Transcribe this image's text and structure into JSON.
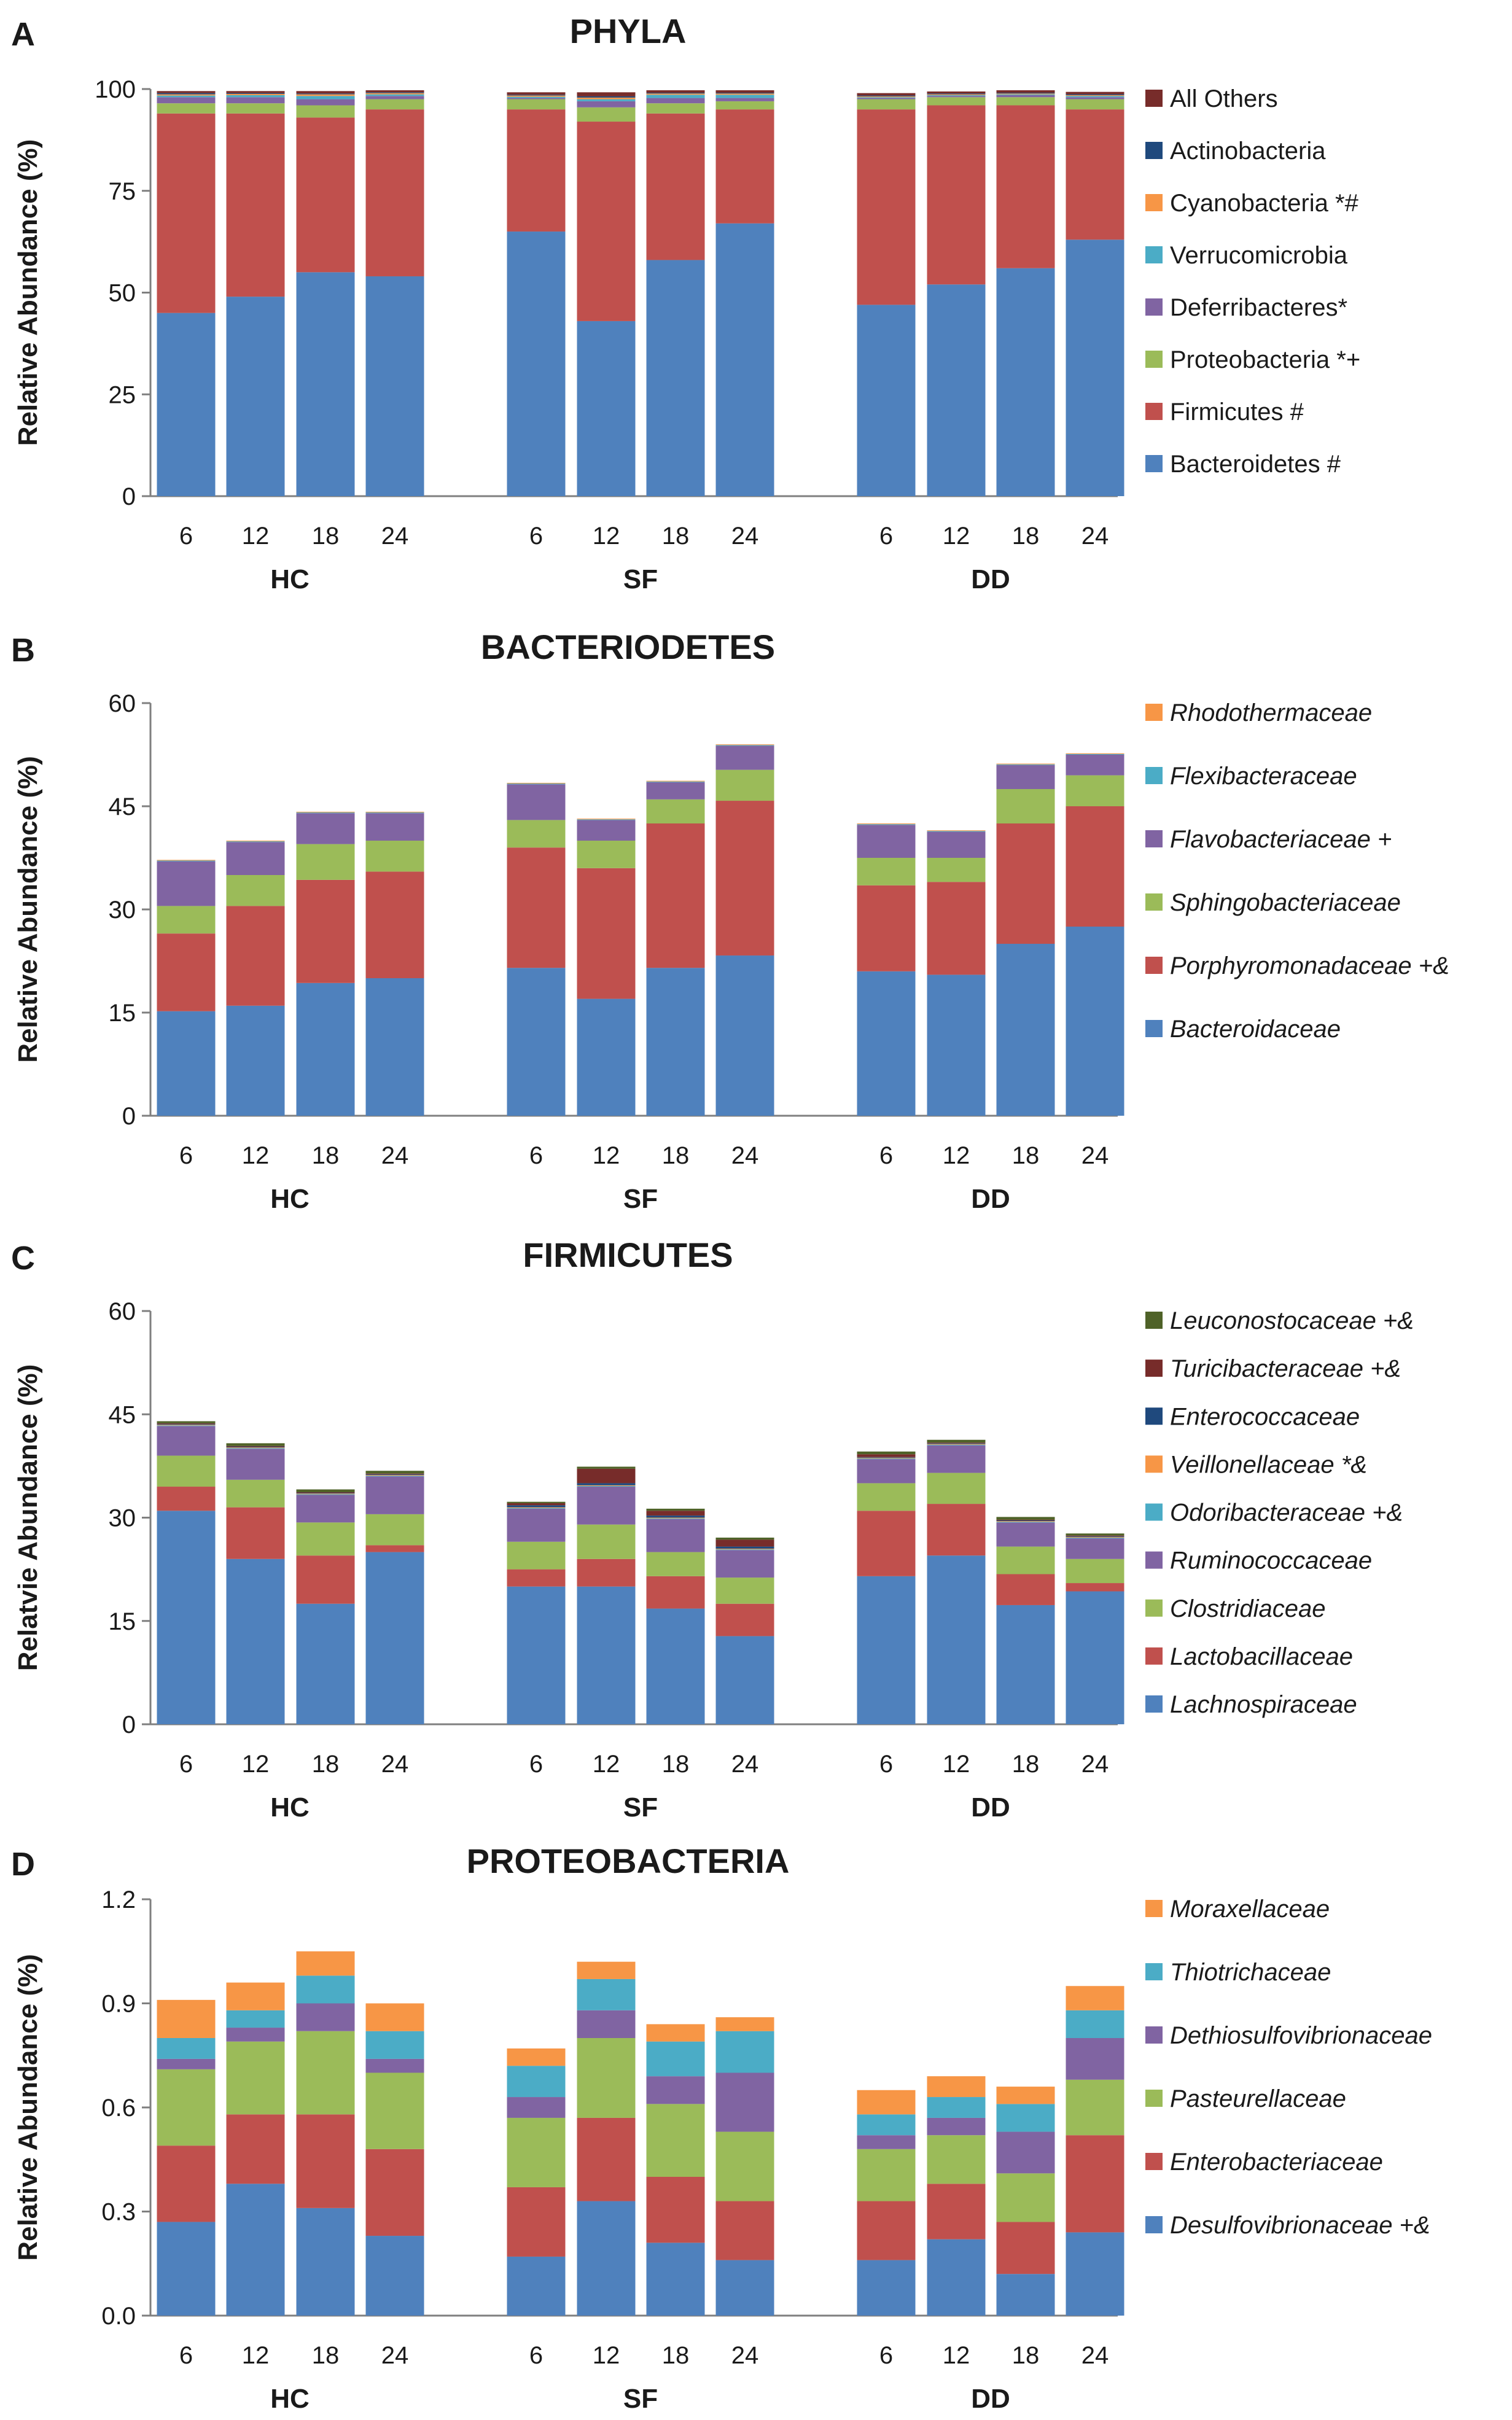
{
  "chart_data": [
    {
      "type": "bar",
      "stacked": true,
      "letter": "A",
      "title": "PHYLA",
      "ylabel": "Relative Abundance (%)",
      "ylim": [
        0,
        100
      ],
      "yticks": [
        "0",
        "25",
        "50",
        "75",
        "100"
      ],
      "categories": [
        "6",
        "12",
        "18",
        "24",
        "6",
        "12",
        "18",
        "24",
        "6",
        "12",
        "18",
        "24"
      ],
      "groups": [
        "HC",
        "SF",
        "DD"
      ],
      "italic_legend": false,
      "series": [
        {
          "name": "Bacteroidetes #",
          "color": "#4f81bd",
          "values": [
            45,
            49,
            55,
            54,
            65,
            43,
            58,
            67,
            47,
            52,
            56,
            63
          ]
        },
        {
          "name": "Firmicutes #",
          "color": "#c0504d",
          "values": [
            49,
            45,
            38,
            41,
            30,
            49,
            36,
            28,
            48,
            44,
            40,
            32
          ]
        },
        {
          "name": "Proteobacteria *+",
          "color": "#9bbb59",
          "values": [
            2.5,
            2.5,
            3,
            2.5,
            2.5,
            3.5,
            2.5,
            2,
            2.5,
            2,
            2,
            2.5
          ]
        },
        {
          "name": "Deferribacteres*",
          "color": "#8064a2",
          "values": [
            1.5,
            1.5,
            1.5,
            0.8,
            0.3,
            1.5,
            1.3,
            0.8,
            0.3,
            0.3,
            0.5,
            0.5
          ]
        },
        {
          "name": "Verrucomicrobia",
          "color": "#4bacc6",
          "values": [
            0.4,
            0.5,
            0.8,
            0.4,
            0.3,
            0.5,
            0.8,
            0.8,
            0.2,
            0.2,
            0.2,
            0.3
          ]
        },
        {
          "name": "Cyanobacteria *#",
          "color": "#f79646",
          "values": [
            0.3,
            0.3,
            0.4,
            0.3,
            0.3,
            0.4,
            0.3,
            0.3,
            0.2,
            0.2,
            0.2,
            0.2
          ]
        },
        {
          "name": "Actinobacteria",
          "color": "#1f497d",
          "values": [
            0.3,
            0.2,
            0.2,
            0.2,
            0.2,
            0.3,
            0.2,
            0.2,
            0.2,
            0.2,
            0.2,
            0.2
          ]
        },
        {
          "name": "All Others",
          "color": "#772c2a",
          "values": [
            0.5,
            0.5,
            0.6,
            0.5,
            0.6,
            1,
            0.6,
            0.6,
            0.6,
            0.5,
            0.6,
            0.6
          ]
        }
      ]
    },
    {
      "type": "bar",
      "stacked": true,
      "letter": "B",
      "title": "BACTERIODETES",
      "ylabel": "Relative Abundance (%)",
      "ylim": [
        0,
        60
      ],
      "yticks": [
        "0",
        "15",
        "30",
        "45",
        "60"
      ],
      "categories": [
        "6",
        "12",
        "18",
        "24",
        "6",
        "12",
        "18",
        "24",
        "6",
        "12",
        "18",
        "24"
      ],
      "groups": [
        "HC",
        "SF",
        "DD"
      ],
      "italic_legend": true,
      "series": [
        {
          "name": "Bacteroidaceae",
          "color": "#4f81bd",
          "values": [
            15.2,
            16,
            19.3,
            20,
            21.5,
            17,
            21.5,
            23.3,
            21,
            20.5,
            25,
            27.5
          ]
        },
        {
          "name": "Porphyromonadaceae +&",
          "color": "#c0504d",
          "values": [
            11.3,
            14.5,
            15,
            15.5,
            17.5,
            19,
            21,
            22.5,
            12.5,
            13.5,
            17.5,
            17.5
          ]
        },
        {
          "name": "Sphingobacteriaceae",
          "color": "#9bbb59",
          "values": [
            4,
            4.5,
            5.2,
            4.5,
            4,
            4,
            3.5,
            4.5,
            4,
            3.5,
            5,
            4.5
          ]
        },
        {
          "name": "Flavobacteriaceae +",
          "color": "#8064a2",
          "values": [
            6.5,
            4.8,
            4.5,
            4,
            5.2,
            3,
            2.5,
            3.5,
            4.8,
            3.8,
            3.5,
            3
          ]
        },
        {
          "name": "Flexibacteraceae",
          "color": "#4bacc6",
          "values": [
            0.1,
            0.1,
            0.1,
            0.1,
            0.1,
            0.1,
            0.1,
            0.1,
            0.1,
            0.1,
            0.1,
            0.1
          ]
        },
        {
          "name": "Rhodothermaceae",
          "color": "#f79646",
          "values": [
            0.1,
            0.1,
            0.1,
            0.1,
            0.1,
            0.1,
            0.1,
            0.1,
            0.1,
            0.1,
            0.1,
            0.1
          ]
        }
      ]
    },
    {
      "type": "bar",
      "stacked": true,
      "letter": "C",
      "title": "FIRMICUTES",
      "ylabel": "Relatvie Abundance (%)",
      "ylim": [
        0,
        60
      ],
      "yticks": [
        "0",
        "15",
        "30",
        "45",
        "60"
      ],
      "categories": [
        "6",
        "12",
        "18",
        "24",
        "6",
        "12",
        "18",
        "24",
        "6",
        "12",
        "18",
        "24"
      ],
      "groups": [
        "HC",
        "SF",
        "DD"
      ],
      "italic_legend": true,
      "series": [
        {
          "name": "Lachnospiraceae",
          "color": "#4f81bd",
          "values": [
            31,
            24,
            17.5,
            25,
            20,
            20,
            16.8,
            12.8,
            21.5,
            24.5,
            17.3,
            19.3
          ]
        },
        {
          "name": "Lactobacillaceae",
          "color": "#c0504d",
          "values": [
            3.5,
            7.5,
            7,
            1,
            2.5,
            4,
            4.7,
            4.7,
            9.5,
            7.5,
            4.5,
            1.2
          ]
        },
        {
          "name": "Clostridiaceae",
          "color": "#9bbb59",
          "values": [
            4.5,
            4,
            4.8,
            4.5,
            4,
            5,
            3.5,
            3.8,
            4,
            4.5,
            4,
            3.5
          ]
        },
        {
          "name": "Ruminococcaceae",
          "color": "#8064a2",
          "values": [
            4.3,
            4.5,
            4,
            5.5,
            4.8,
            5.5,
            4.8,
            4,
            3.5,
            4,
            3.5,
            3
          ]
        },
        {
          "name": "Odoribacteraceae +&",
          "color": "#4bacc6",
          "values": [
            0.1,
            0.1,
            0.1,
            0.1,
            0.1,
            0.1,
            0.1,
            0.1,
            0.1,
            0.1,
            0.1,
            0.1
          ]
        },
        {
          "name": "Veillonellaceae *&",
          "color": "#f79646",
          "values": [
            0.1,
            0.1,
            0.1,
            0.1,
            0.1,
            0.1,
            0.1,
            0.1,
            0.1,
            0.1,
            0.1,
            0.1
          ]
        },
        {
          "name": "Enterococcaceae",
          "color": "#1f497d",
          "values": [
            0.1,
            0.1,
            0.1,
            0.1,
            0.3,
            0.3,
            0.3,
            0.3,
            0.1,
            0.1,
            0.1,
            0.1
          ]
        },
        {
          "name": "Turicibacteraceae +&",
          "color": "#772c2a",
          "values": [
            0.1,
            0.1,
            0.1,
            0.1,
            0.3,
            2.1,
            0.7,
            1,
            0.4,
            0.1,
            0.1,
            0.1
          ]
        },
        {
          "name": "Leuconostocaceae +&",
          "color": "#4f6228",
          "values": [
            0.3,
            0.4,
            0.4,
            0.4,
            0.2,
            0.3,
            0.3,
            0.3,
            0.4,
            0.4,
            0.4,
            0.3
          ]
        }
      ]
    },
    {
      "type": "bar",
      "stacked": true,
      "letter": "D",
      "title": "PROTEOBACTERIA",
      "ylabel": "Relative Abundance (%)",
      "ylim": [
        0,
        1.2
      ],
      "yticks": [
        "0.0",
        "0.3",
        "0.6",
        "0.9",
        "1.2"
      ],
      "categories": [
        "6",
        "12",
        "18",
        "24",
        "6",
        "12",
        "18",
        "24",
        "6",
        "12",
        "18",
        "24"
      ],
      "groups": [
        "HC",
        "SF",
        "DD"
      ],
      "italic_legend": true,
      "series": [
        {
          "name": "Desulfovibrionaceae +&",
          "color": "#4f81bd",
          "values": [
            0.27,
            0.38,
            0.31,
            0.23,
            0.17,
            0.33,
            0.21,
            0.16,
            0.16,
            0.22,
            0.12,
            0.24
          ]
        },
        {
          "name": "Enterobacteriaceae",
          "color": "#c0504d",
          "values": [
            0.22,
            0.2,
            0.27,
            0.25,
            0.2,
            0.24,
            0.19,
            0.17,
            0.17,
            0.16,
            0.15,
            0.28
          ]
        },
        {
          "name": "Pasteurellaceae",
          "color": "#9bbb59",
          "values": [
            0.22,
            0.21,
            0.24,
            0.22,
            0.2,
            0.23,
            0.21,
            0.2,
            0.15,
            0.14,
            0.14,
            0.16
          ]
        },
        {
          "name": "Dethiosulfovibrionaceae",
          "color": "#8064a2",
          "values": [
            0.03,
            0.04,
            0.08,
            0.04,
            0.06,
            0.08,
            0.08,
            0.17,
            0.04,
            0.05,
            0.12,
            0.12
          ]
        },
        {
          "name": "Thiotrichaceae",
          "color": "#4bacc6",
          "values": [
            0.06,
            0.05,
            0.08,
            0.08,
            0.09,
            0.09,
            0.1,
            0.12,
            0.06,
            0.06,
            0.08,
            0.08
          ]
        },
        {
          "name": "Moraxellaceae",
          "color": "#f79646",
          "values": [
            0.11,
            0.08,
            0.07,
            0.08,
            0.05,
            0.05,
            0.05,
            0.04,
            0.07,
            0.06,
            0.05,
            0.07
          ]
        }
      ]
    }
  ]
}
